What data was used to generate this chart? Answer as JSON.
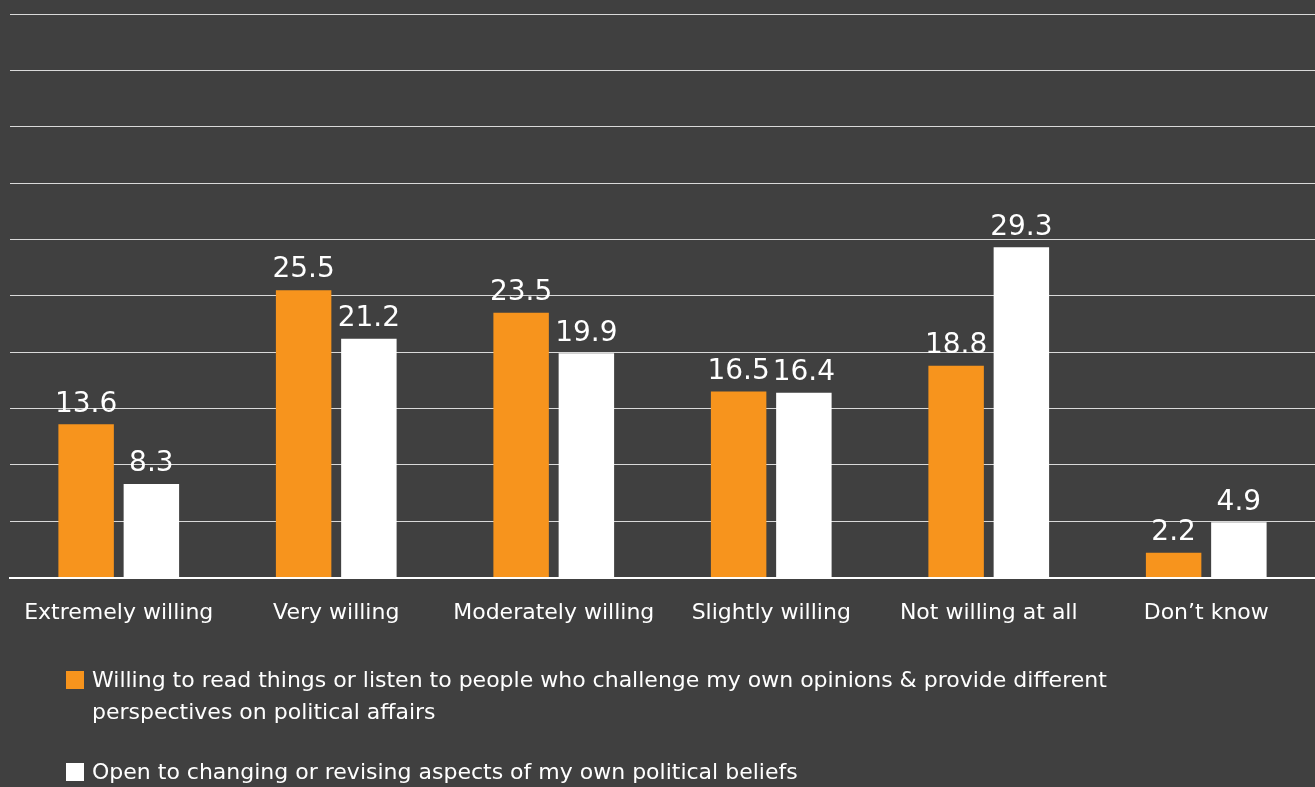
{
  "chart_data": {
    "type": "bar",
    "categories": [
      "Extremely willing",
      "Very willing",
      "Moderately willing",
      "Slightly willing",
      "Not willing at all",
      "Don’t know"
    ],
    "series": [
      {
        "name": "Willing  to read things or listen to people who challenge my own opinions & provide different perspectives on political affairs",
        "color": "#f7941d",
        "values": [
          13.6,
          25.5,
          23.5,
          16.5,
          18.8,
          2.2
        ]
      },
      {
        "name": "Open  to changing or revising aspects of my own political beliefs",
        "color": "#ffffff",
        "values": [
          8.3,
          21.2,
          19.9,
          16.4,
          29.3,
          4.9
        ]
      }
    ],
    "ylim": [
      0,
      50
    ],
    "yticks": [
      {
        "value": 0,
        "label": null
      },
      {
        "value": 5,
        "label": null
      },
      {
        "value": 10,
        "label": null
      },
      {
        "value": 15,
        "label": null
      },
      {
        "value": 20,
        "label": null
      },
      {
        "value": 25,
        "label": null
      },
      {
        "value": 30,
        "label": null
      },
      {
        "value": 35,
        "label": null
      },
      {
        "value": 40,
        "label": null
      },
      {
        "value": 45,
        "label": null
      },
      {
        "value": 50,
        "label": null
      }
    ],
    "grid": "y",
    "tick_labels": "x",
    "data_labels": true,
    "legend": "bottom"
  }
}
